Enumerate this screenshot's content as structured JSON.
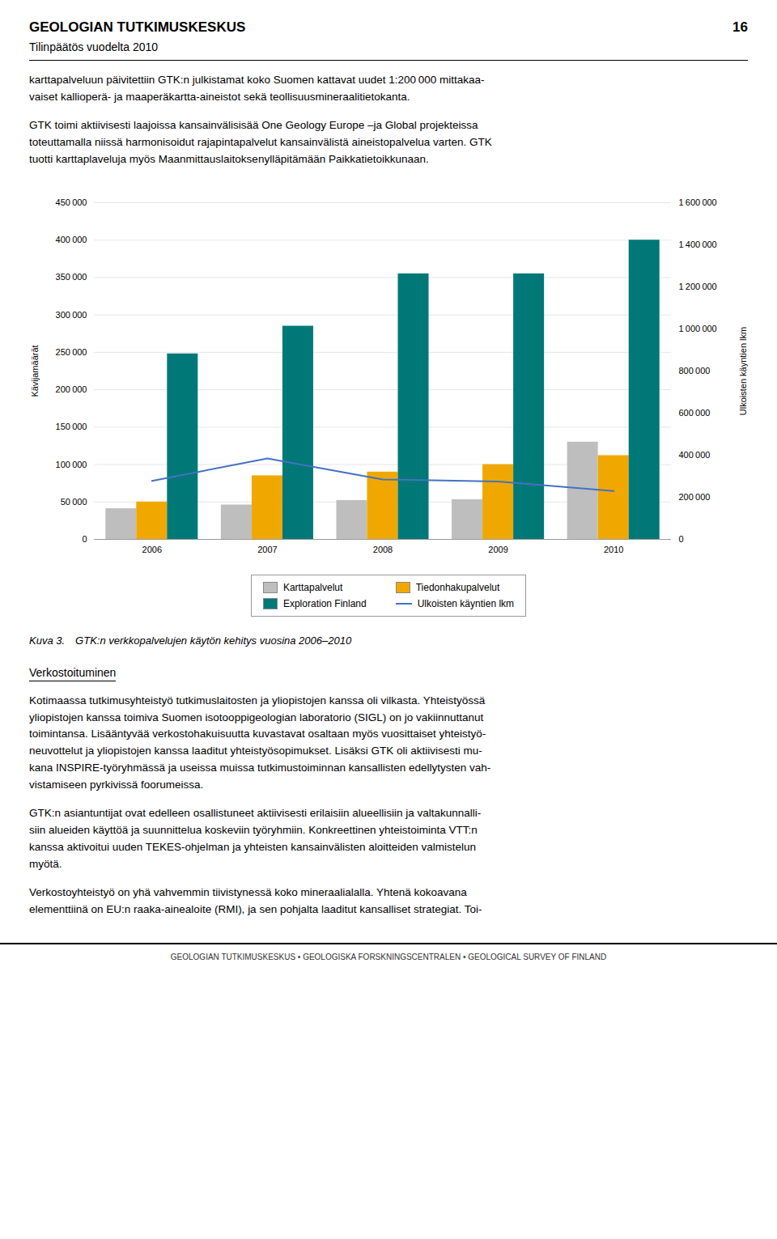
{
  "page": {
    "header": "GEOLOGIAN TUTKIMUSKESKUS",
    "subheader": "Tilinpäätös vuodelta 2010",
    "page_number": "16",
    "paragraphs_above": [
      "karttapalveluun päivitettiin GTK:n julkistamat koko Suomen kattavat uudet 1:200 000 mittakaa-\nvaiset kallioperä- ja maaperäkartta-aineistot sekä teollisuusmineraalitietokanta.",
      "GTK toimi aktiivisesti laajoissa kansainvälisisää One Geology Europe –ja Global projekteissa\ntoteuttamalla niissä harmonisoidut rajapintapalvelut kansainvälistä aineistopalvelua varten. GTK\ntuotti karttaplaveluja myös Maanmittauslaitoksenylläpitämään Paikkatietoikkunaan."
    ],
    "section_title": "Verkostoituminen",
    "paragraphs_below": [
      "Kotimaassa tutkimusyhteistyö tutkimuslaitosten ja yliopistojen kanssa oli vilkasta. Yhteistyössä\nyliopistojen kanssa toimiva Suomen isotooppigeologian laboratorio (SIGL) on jo vakiinnuttanut\ntoimintansa. Lisääntyvää verkostohakuisuutta kuvastavat osaltaan myös vuosittaiset yhteistyö-\nneuvottelut ja yliopistojen kanssa laaditut yhteistyösopimukset. Lisäksi GTK oli aktiivisesti mu-\nkana INSPIRE-työryhmässä ja useissa muissa tutkimustoiminnan kansallisten edellytysten vah-\nvistamiseen pyrkivissä foorumeissa.",
      "GTK:n asiantuntijat ovat edelleen osallistuneet aktiivisesti erilaisiin alueellisiin ja valtakunnalli-\nsiin alueiden käyttöä ja suunnittelua koskeviin työryhmiin. Konkreettinen yhteistoiminta VTT:n\nkanssa aktivoitui uuden TEKES-ohjelman ja yhteisten kansainvälisten aloitteiden valmistelun\nmyötä.",
      "Verkostoyhteistyö on yhä vahvemmin tiivistynessä koko mineraalialalla. Yhtenä kokoavana\nelementtiinä on EU:n raaka-ainealoite (RMI), ja sen pohjalta laaditut kansalliset strategiat. Toi-"
    ],
    "footer": "GEOLOGIAN TUTKIMUSKESKUS  •  GEOLOGISKA FORSKNINGSCENTRALEN  •  GEOLOGICAL SURVEY OF FINLAND"
  },
  "chart_data": {
    "type": "bar",
    "title": "Kuva 3. GTK:n verkkopalvelujen käytön kehitys vuosina 2006–2010",
    "categories": [
      "2006",
      "2007",
      "2008",
      "2009",
      "2010"
    ],
    "ylabel": "Kävijamäärät",
    "y2label": "Ulkoisten käyntien lkm",
    "ylim": [
      0,
      450000
    ],
    "yticks": [
      0,
      {
        "value": 50000,
        "label": "50 000"
      },
      {
        "value": 100000,
        "label": "100 000"
      },
      {
        "value": 150000,
        "label": "150 000"
      },
      {
        "value": 200000,
        "label": "200 000"
      },
      {
        "value": 250000,
        "label": "250 000"
      },
      {
        "value": 300000,
        "label": "300 000"
      },
      {
        "value": 350000,
        "label": "350 000"
      },
      {
        "value": 400000,
        "label": "400 000"
      },
      {
        "value": 450000,
        "label": "450 000"
      }
    ],
    "y2lim": [
      0,
      1600000
    ],
    "y2ticks": [
      0,
      {
        "value": 200000,
        "label": "200 000"
      },
      {
        "value": 400000,
        "label": "400 000"
      },
      {
        "value": 600000,
        "label": "600 000"
      },
      {
        "value": 800000,
        "label": "800 000"
      },
      {
        "value": 1000000,
        "label": "1 000 000"
      },
      {
        "value": 1200000,
        "label": "1 200 000"
      },
      {
        "value": 1400000,
        "label": "1 400 000"
      },
      {
        "value": 1600000,
        "label": "1 600 000"
      }
    ],
    "grid": true,
    "legend": "bottom",
    "series": [
      {
        "name": "Karttapalvelut",
        "type": "bar",
        "color": "#bebebe",
        "values": [
          41000,
          46000,
          52000,
          53000,
          130000
        ]
      },
      {
        "name": "Tiedonhakupalvelut",
        "type": "bar",
        "color": "#f0a800",
        "values": [
          50000,
          85000,
          90000,
          100000,
          112000
        ]
      },
      {
        "name": "Exploration Finland",
        "type": "bar",
        "color": "#007878",
        "values": [
          248000,
          285000,
          355000,
          355000,
          400000
        ]
      },
      {
        "name": "Ulkoisten käyntien lkm",
        "type": "line",
        "axis": "y2",
        "color": "#4472c4",
        "values": [
          278000,
          385000,
          285000,
          275000,
          230000
        ]
      }
    ]
  }
}
